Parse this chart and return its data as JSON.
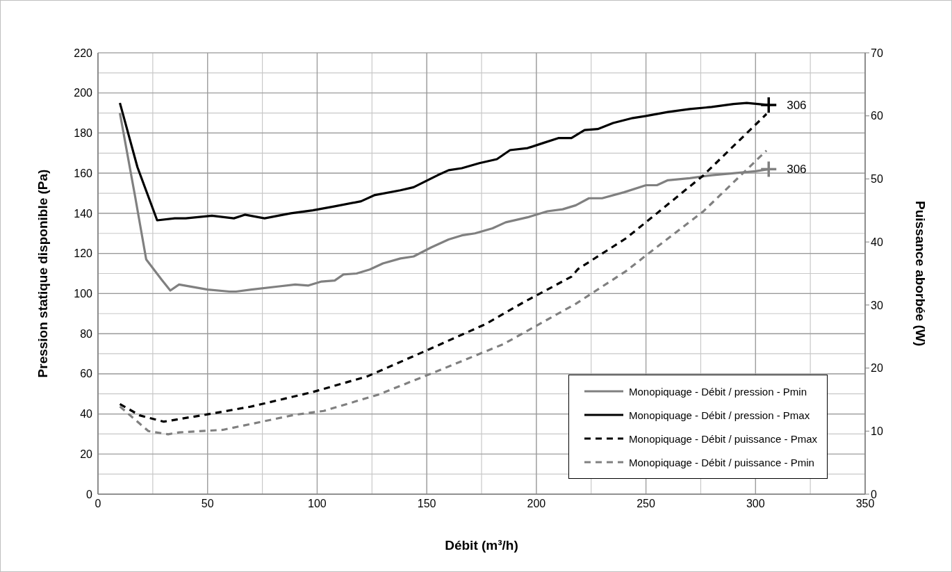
{
  "chart_data": {
    "type": "line",
    "xlabel": "Débit (m³/h)",
    "ylabel": "Pression statique disponible (Pa)",
    "y2label": "Puissance aborbée (W)",
    "xlim": [
      0,
      350
    ],
    "xticks": [
      0,
      50,
      100,
      150,
      200,
      250,
      300,
      350
    ],
    "ylim": [
      0,
      220
    ],
    "yticks": [
      0,
      20,
      40,
      60,
      80,
      100,
      120,
      140,
      160,
      180,
      200,
      220
    ],
    "y2lim": [
      0,
      70
    ],
    "y2ticks": [
      0,
      10,
      20,
      30,
      40,
      50,
      60,
      70
    ],
    "grid": true,
    "legend": "bottom right",
    "marker": "none",
    "series": [
      {
        "name": "Monopiquage - Débit / pression - Pmin",
        "color": "#808080",
        "line_style": "solid",
        "x": [
          10,
          17,
          22,
          29,
          33,
          37,
          50,
          60,
          63,
          70,
          82,
          90,
          96,
          102,
          108,
          112,
          118,
          124,
          130,
          138,
          144,
          152,
          160,
          166,
          172,
          180,
          186,
          196,
          205,
          212,
          218,
          224,
          230,
          240,
          250,
          255,
          260,
          270,
          280,
          300,
          306
        ],
        "values": [
          190,
          148,
          117,
          107,
          101.5,
          104.5,
          102,
          101,
          101,
          102,
          103.5,
          104.5,
          104,
          106,
          106.5,
          109.5,
          110,
          112,
          115,
          117.5,
          118.5,
          123,
          127,
          129,
          130,
          132.5,
          135.5,
          138,
          141,
          142,
          144,
          147.5,
          147.5,
          150.5,
          154,
          154,
          156.5,
          157.5,
          159,
          161,
          162
        ]
      },
      {
        "name": "Monopiquage - Débit / pression - Pmax",
        "color": "#000000",
        "line_style": "solid",
        "x": [
          10,
          18,
          27,
          35,
          40,
          52,
          62,
          67,
          76,
          88,
          98,
          108,
          120,
          126,
          138,
          144,
          155,
          160,
          166,
          174,
          182,
          188,
          196,
          203,
          210,
          216,
          222,
          228,
          235,
          244,
          250,
          260,
          270,
          280,
          290,
          296,
          306
        ],
        "values": [
          195,
          163,
          136.5,
          137.5,
          137.5,
          138.8,
          137.5,
          139.3,
          137.5,
          140,
          141.5,
          143.5,
          146,
          149,
          151.5,
          153,
          159,
          161.5,
          162.5,
          165,
          167,
          171.5,
          172.5,
          175,
          177.5,
          177.5,
          181.5,
          182,
          185,
          187.5,
          188.5,
          190.5,
          192,
          193,
          194.5,
          195,
          194
        ]
      },
      {
        "name": "Monopiquage - Débit / puissance - Pmax",
        "color": "#000000",
        "line_style": "dashed",
        "axis": "y2",
        "x": [
          10,
          19,
          30,
          49,
          70,
          98,
          123,
          148,
          177,
          194,
          216,
          219,
          241,
          252,
          276,
          305
        ],
        "values": [
          14.3,
          12.5,
          11.5,
          12.6,
          13.9,
          16.2,
          18.7,
          22.5,
          27,
          30.4,
          34.5,
          35.7,
          40.6,
          43.7,
          50.5,
          60.3
        ]
      },
      {
        "name": "Monopiquage - Débit / puissance - Pmin",
        "color": "#808080",
        "line_style": "dashed",
        "axis": "y2",
        "x": [
          10,
          23,
          32,
          37,
          57,
          90,
          103,
          128,
          154,
          185,
          218,
          241,
          252,
          276,
          305
        ],
        "values": [
          13.9,
          10,
          9.5,
          9.8,
          10.2,
          12.6,
          13.2,
          15.8,
          19.4,
          23.8,
          30.2,
          35.4,
          38.4,
          44.8,
          54.5
        ]
      }
    ],
    "annotations": [
      {
        "text": "306",
        "x": 306,
        "y": 194
      },
      {
        "text": "306",
        "x": 306,
        "y": 162
      }
    ]
  }
}
